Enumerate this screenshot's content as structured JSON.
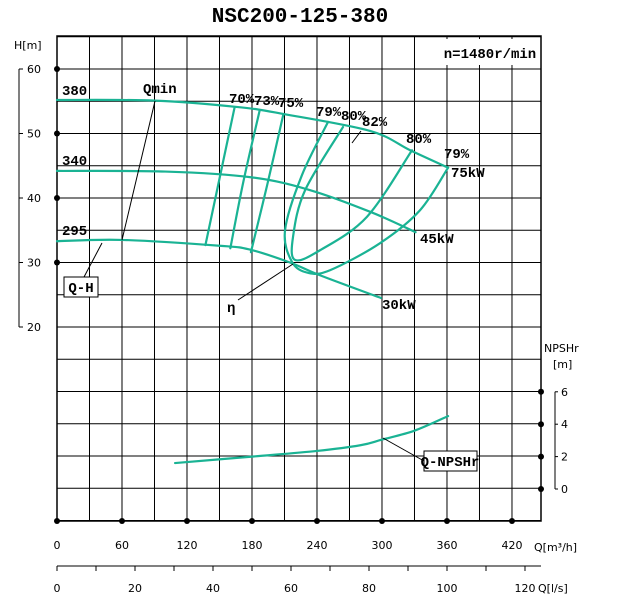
{
  "title": "NSC200-125-380",
  "speed_label": "n=1480r/min",
  "chart_data": {
    "type": "line",
    "title": "NSC200-125-380",
    "x": {
      "label": "Q[m³/h]",
      "range": [
        0,
        447
      ],
      "ticks": [
        0,
        60,
        120,
        180,
        240,
        300,
        360,
        420
      ],
      "tick_labels": [
        "0",
        "60",
        "120",
        "180",
        "240",
        "300",
        "360",
        "420"
      ]
    },
    "x2": {
      "label": "Q[l/s]",
      "ticks": [
        0,
        20,
        40,
        60,
        80,
        100,
        120
      ],
      "tick_labels": [
        "0",
        "20",
        "40",
        "60",
        "80",
        "100",
        "120"
      ]
    },
    "y": {
      "label": "H[m]",
      "range": [
        -10,
        65
      ],
      "ticks": [
        20,
        30,
        40,
        50,
        60
      ],
      "tick_labels": [
        "20",
        "30",
        "40",
        "50",
        "60"
      ]
    },
    "y2": {
      "label_line1": "NPSHr",
      "label_line2": "[m]",
      "ticks": [
        0,
        2,
        4,
        6
      ],
      "tick_labels": [
        "0",
        "2",
        "4",
        "6"
      ]
    },
    "grid": true,
    "head_curves": [
      {
        "name": "380",
        "power": "75kW",
        "points": [
          [
            0,
            55.2
          ],
          [
            90,
            55.1
          ],
          [
            167,
            54.1
          ],
          [
            210,
            53
          ],
          [
            289,
            50.4
          ],
          [
            326,
            47.4
          ],
          [
            361,
            44.7
          ]
        ]
      },
      {
        "name": "340",
        "power": "45kW",
        "points": [
          [
            0,
            44.2
          ],
          [
            100,
            44.1
          ],
          [
            180,
            43.2
          ],
          [
            234,
            41.2
          ],
          [
            290,
            37.8
          ],
          [
            331,
            34.7
          ]
        ]
      },
      {
        "name": "295",
        "power": "30kW",
        "points": [
          [
            0,
            33.3
          ],
          [
            60,
            33.5
          ],
          [
            150,
            32.6
          ],
          [
            178,
            32
          ],
          [
            215,
            30
          ],
          [
            243,
            28
          ],
          [
            299,
            24.5
          ]
        ]
      }
    ],
    "efficiency_curves": [
      {
        "name": "70%",
        "points": [
          [
            164,
            54.1
          ],
          [
            150,
            43
          ],
          [
            137,
            32.7
          ]
        ]
      },
      {
        "name": "73%",
        "points": [
          [
            187,
            53.5
          ],
          [
            172,
            42.5
          ],
          [
            160,
            32.2
          ]
        ]
      },
      {
        "name": "75%",
        "points": [
          [
            209,
            53
          ],
          [
            194,
            42
          ],
          [
            179,
            31.6
          ]
        ]
      },
      {
        "name": "79%",
        "points": [
          [
            250.2,
            51.8
          ],
          [
            226,
            43.5
          ],
          [
            210.5,
            35
          ],
          [
            216.9,
            30.1
          ],
          [
            231.7,
            28.4
          ],
          [
            252,
            28.8
          ],
          [
            298.2,
            33
          ],
          [
            335.1,
            38.1
          ],
          [
            361,
            44.7
          ]
        ]
      },
      {
        "name": "80%",
        "points": [
          [
            264,
            51
          ],
          [
            229,
            41.2
          ],
          [
            217.9,
            34
          ],
          [
            219.7,
            30.4
          ],
          [
            242.8,
            31.9
          ],
          [
            286.2,
            37.1
          ],
          [
            327.7,
            47.4
          ]
        ]
      }
    ],
    "efficiency_labels": [
      "70%",
      "73%",
      "75%",
      "79%",
      "80%",
      "82%",
      "80%",
      "79%"
    ],
    "npshr_curve": {
      "name": "Q-NPSHr",
      "points": [
        [
          109,
          1.6
        ],
        [
          180,
          2.0
        ],
        [
          240,
          2.35
        ],
        [
          280,
          2.7
        ],
        [
          300,
          3.05
        ],
        [
          330,
          3.6
        ],
        [
          361,
          4.5
        ]
      ]
    },
    "annotations": {
      "qmin": "Qmin",
      "qh": "Q-H",
      "eta": "η",
      "npsh": "Q-NPSHr"
    }
  },
  "colors": {
    "curve": "#1ab394",
    "grid": "#000000"
  }
}
